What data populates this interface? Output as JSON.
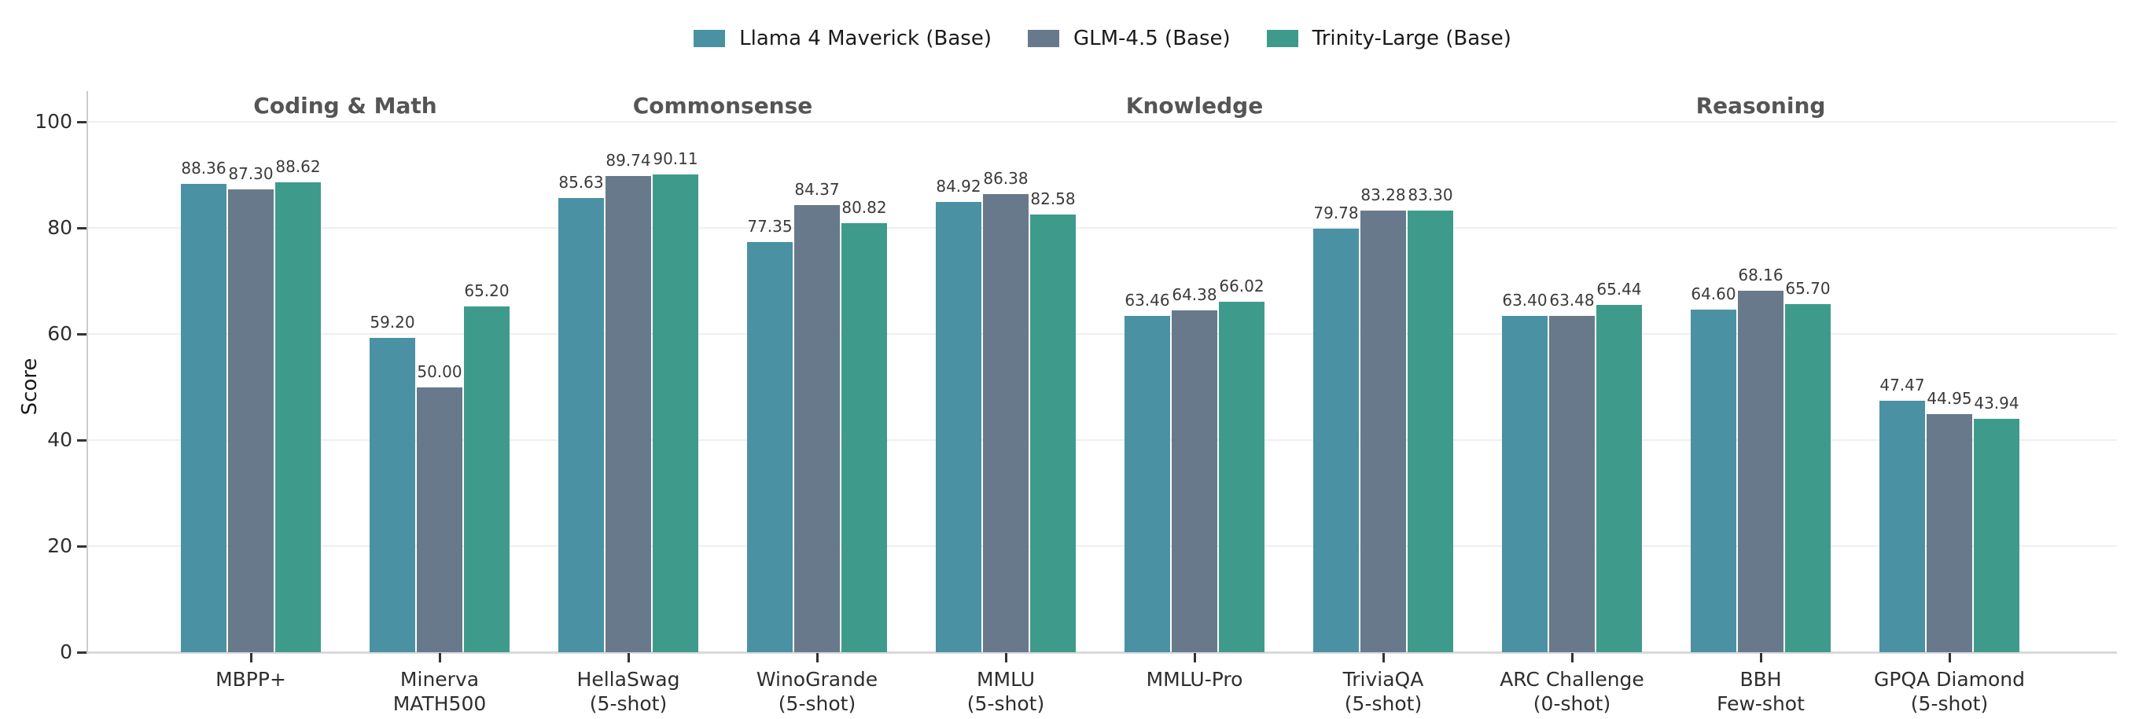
{
  "chart_data": {
    "type": "bar",
    "title": "",
    "xlabel": "",
    "ylabel": "Score",
    "ylim": [
      0,
      100
    ],
    "yticks": [
      0,
      20,
      40,
      60,
      80,
      100
    ],
    "grid": "horizontal",
    "legend_position": "top-center",
    "value_label_format": "2-decimals",
    "categories": [
      [
        "MBPP+"
      ],
      [
        "Minerva",
        "MATH500"
      ],
      [
        "HellaSwag",
        "(5-shot)"
      ],
      [
        "WinoGrande",
        "(5-shot)"
      ],
      [
        "MMLU",
        "(5-shot)"
      ],
      [
        "MMLU-Pro"
      ],
      [
        "TriviaQA",
        "(5-shot)"
      ],
      [
        "ARC Challenge",
        "(0-shot)"
      ],
      [
        "BBH",
        "Few-shot"
      ],
      [
        "GPQA Diamond",
        "(5-shot)"
      ]
    ],
    "series": [
      {
        "name": "Llama 4 Maverick (Base)",
        "color": "#4a91a4",
        "values": [
          88.36,
          59.2,
          85.63,
          77.35,
          84.92,
          63.46,
          79.78,
          63.4,
          64.6,
          47.47
        ]
      },
      {
        "name": "GLM-4.5 (Base)",
        "color": "#68798b",
        "values": [
          87.3,
          50.0,
          89.74,
          84.37,
          86.38,
          64.38,
          83.28,
          63.48,
          68.16,
          44.95
        ]
      },
      {
        "name": "Trinity-Large (Base)",
        "color": "#3e9b8c",
        "values": [
          88.62,
          65.2,
          90.11,
          80.82,
          82.58,
          66.02,
          83.3,
          65.44,
          65.7,
          43.94
        ]
      }
    ],
    "sections": [
      {
        "label": "Coding & Math",
        "from": 0,
        "to": 1
      },
      {
        "label": "Commonsense",
        "from": 2,
        "to": 3
      },
      {
        "label": "Knowledge",
        "from": 4,
        "to": 6
      },
      {
        "label": "Reasoning",
        "from": 7,
        "to": 9
      }
    ]
  }
}
